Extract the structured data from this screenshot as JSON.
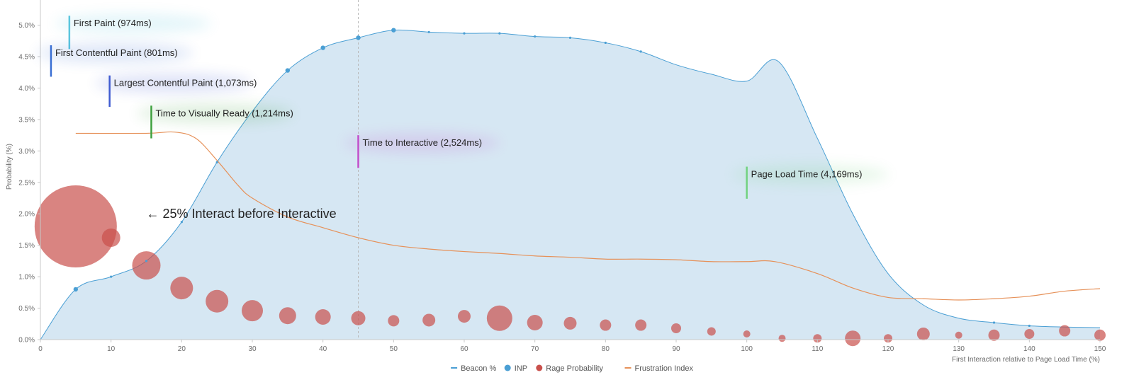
{
  "chart_data": {
    "type": "area",
    "xlabel": "First Interaction relative to Page Load Time (%)",
    "ylabel": "Probability (%)",
    "xlim": [
      0,
      150
    ],
    "ylim": [
      0,
      5.4
    ],
    "x_ticks": [
      0,
      10,
      20,
      30,
      40,
      50,
      60,
      70,
      80,
      90,
      100,
      110,
      120,
      130,
      140,
      150
    ],
    "x_tick_labels": [
      "0",
      "10",
      "20",
      "30",
      "40",
      "50",
      "60",
      "70",
      "80",
      "90",
      "100",
      "110",
      "120",
      "130",
      "140",
      "150"
    ],
    "y_ticks": [
      0,
      0.5,
      1.0,
      1.5,
      2.0,
      2.5,
      3.0,
      3.5,
      4.0,
      4.5,
      5.0
    ],
    "y_tick_labels": [
      "0.0%",
      "0.5%",
      "1.0%",
      "1.5%",
      "2.0%",
      "2.5%",
      "3.0%",
      "3.5%",
      "4.0%",
      "4.5%",
      "5.0%"
    ],
    "series": [
      {
        "name": "Beacon %",
        "color": "#4a9fd4",
        "fill": "#cfe3f1",
        "points": [
          [
            0,
            0.0
          ],
          [
            5,
            0.8
          ],
          [
            10,
            1.0
          ],
          [
            15,
            1.25
          ],
          [
            20,
            1.87
          ],
          [
            25,
            2.82
          ],
          [
            30,
            3.63
          ],
          [
            35,
            4.28
          ],
          [
            40,
            4.64
          ],
          [
            45,
            4.8
          ],
          [
            50,
            4.92
          ],
          [
            55,
            4.89
          ],
          [
            60,
            4.87
          ],
          [
            65,
            4.87
          ],
          [
            70,
            4.82
          ],
          [
            75,
            4.8
          ],
          [
            80,
            4.72
          ],
          [
            85,
            4.58
          ],
          [
            90,
            4.37
          ],
          [
            95,
            4.22
          ],
          [
            100,
            4.11
          ],
          [
            104.5,
            4.42
          ],
          [
            110,
            3.2
          ],
          [
            115,
            2.0
          ],
          [
            120,
            1.05
          ],
          [
            125,
            0.55
          ],
          [
            130,
            0.34
          ],
          [
            135,
            0.27
          ],
          [
            140,
            0.22
          ],
          [
            145,
            0.2
          ],
          [
            150,
            0.19
          ]
        ]
      },
      {
        "name": "INP",
        "color": "#4a9fd4",
        "points": [
          [
            5,
            0.8
          ],
          [
            10,
            1.0
          ],
          [
            15,
            1.25
          ],
          [
            20,
            1.87
          ],
          [
            25,
            2.82
          ],
          [
            35,
            4.28
          ],
          [
            40,
            4.64
          ],
          [
            45,
            4.8
          ],
          [
            50,
            4.92
          ],
          [
            55,
            4.89
          ],
          [
            60,
            4.87
          ],
          [
            65,
            4.87
          ],
          [
            70,
            4.82
          ],
          [
            75,
            4.8
          ],
          [
            80,
            4.72
          ],
          [
            85,
            4.58
          ],
          [
            135,
            0.27
          ],
          [
            140,
            0.22
          ]
        ],
        "sizes": [
          2,
          1,
          1,
          1,
          1,
          2,
          2,
          2,
          2,
          1,
          1,
          1,
          1,
          1,
          1,
          1,
          1,
          1
        ]
      },
      {
        "name": "Rage Probability",
        "color": "#c9504c",
        "points": [
          [
            5,
            1.8
          ],
          [
            10,
            1.62
          ],
          [
            15,
            1.18
          ],
          [
            20,
            0.82
          ],
          [
            25,
            0.61
          ],
          [
            30,
            0.46
          ],
          [
            35,
            0.38
          ],
          [
            40,
            0.36
          ],
          [
            45,
            0.34
          ],
          [
            50,
            0.3
          ],
          [
            55,
            0.31
          ],
          [
            60,
            0.37
          ],
          [
            65,
            0.34
          ],
          [
            70,
            0.27
          ],
          [
            75,
            0.26
          ],
          [
            80,
            0.23
          ],
          [
            85,
            0.23
          ],
          [
            90,
            0.18
          ],
          [
            95,
            0.13
          ],
          [
            100,
            0.09
          ],
          [
            105,
            0.02
          ],
          [
            110,
            0.02
          ],
          [
            115,
            0.02
          ],
          [
            120,
            0.02
          ],
          [
            125,
            0.09
          ],
          [
            130,
            0.07
          ],
          [
            135,
            0.07
          ],
          [
            140,
            0.09
          ],
          [
            145,
            0.14
          ],
          [
            150,
            0.07
          ]
        ],
        "sizes": [
          58,
          13,
          20,
          16,
          16,
          15,
          12,
          11,
          10,
          8,
          9,
          9,
          18,
          11,
          9,
          8,
          8,
          7,
          6,
          5,
          5,
          6,
          11,
          6,
          9,
          5,
          8,
          7,
          8,
          8
        ]
      },
      {
        "name": "Frustration Index",
        "color": "#e69159",
        "points": [
          [
            5,
            3.28
          ],
          [
            15,
            3.28
          ],
          [
            19,
            3.3
          ],
          [
            22,
            3.2
          ],
          [
            25,
            2.85
          ],
          [
            28,
            2.45
          ],
          [
            30,
            2.25
          ],
          [
            35,
            1.95
          ],
          [
            40,
            1.78
          ],
          [
            45,
            1.62
          ],
          [
            50,
            1.5
          ],
          [
            55,
            1.44
          ],
          [
            60,
            1.4
          ],
          [
            65,
            1.37
          ],
          [
            70,
            1.33
          ],
          [
            75,
            1.31
          ],
          [
            80,
            1.28
          ],
          [
            85,
            1.28
          ],
          [
            90,
            1.27
          ],
          [
            95,
            1.24
          ],
          [
            100,
            1.24
          ],
          [
            104,
            1.24
          ],
          [
            110,
            1.05
          ],
          [
            115,
            0.82
          ],
          [
            120,
            0.67
          ],
          [
            125,
            0.65
          ],
          [
            130,
            0.63
          ],
          [
            135,
            0.65
          ],
          [
            140,
            0.69
          ],
          [
            145,
            0.77
          ],
          [
            150,
            0.81
          ]
        ]
      }
    ],
    "markers": [
      {
        "label": "First Paint (974ms)",
        "x": 4.1,
        "y_top": 5.15,
        "y_bottom": 4.62,
        "color": "#5bc6de"
      },
      {
        "label": "First Contentful Paint (801ms)",
        "x": 1.5,
        "y_top": 4.68,
        "y_bottom": 4.18,
        "color": "#3a6fd3"
      },
      {
        "label": "Largest Contentful Paint (1,073ms)",
        "x": 9.8,
        "y_top": 4.2,
        "y_bottom": 3.7,
        "color": "#3f5bd1"
      },
      {
        "label": "Time to Visually Ready (1,214ms)",
        "x": 15.7,
        "y_top": 3.72,
        "y_bottom": 3.2,
        "color": "#3fa13f"
      },
      {
        "label": "Time to Interactive (2,524ms)",
        "x": 45,
        "y_top": 3.25,
        "y_bottom": 2.73,
        "color": "#c24fcb"
      },
      {
        "label": "Page Load Time (4,169ms)",
        "x": 100,
        "y_top": 2.75,
        "y_bottom": 2.24,
        "color": "#71d27f"
      }
    ],
    "annotations": [
      {
        "text": "← 25% Interact before Interactive",
        "x": 15,
        "y": 2.0
      }
    ],
    "reference_line_x": 45,
    "legend": [
      "Beacon %",
      "INP",
      "Rage Probability",
      "Frustration Index"
    ],
    "legend_position": "bottom-center",
    "grid": false
  }
}
